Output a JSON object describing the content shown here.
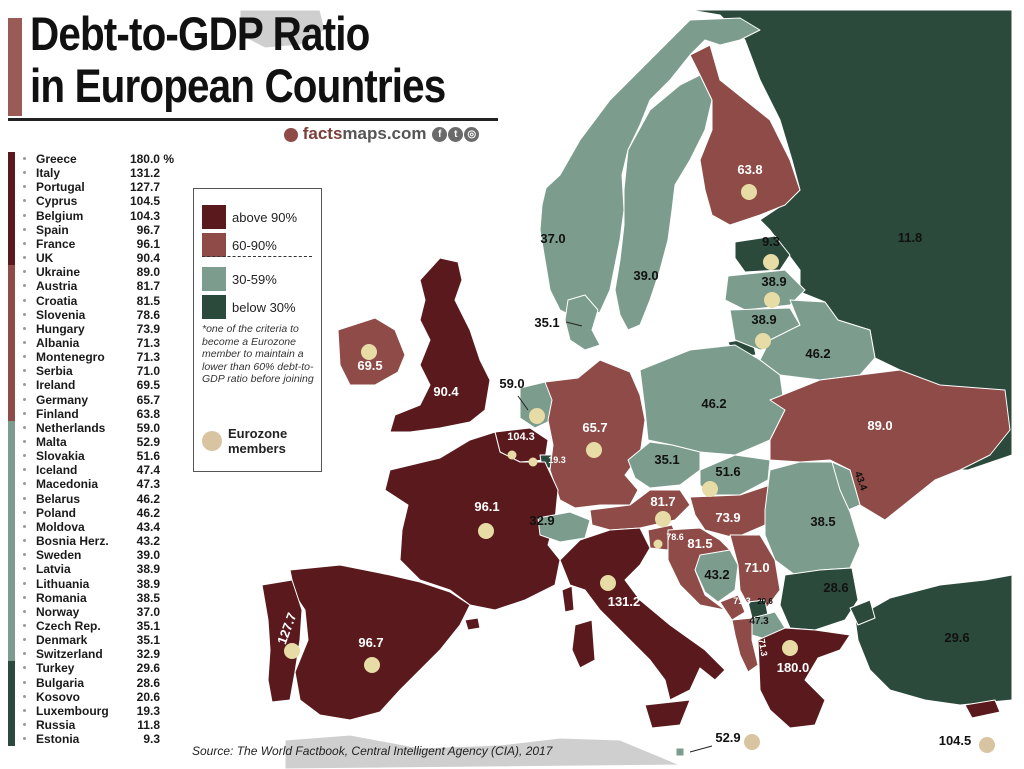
{
  "title": {
    "line1": "Debt-to-GDP Ratio",
    "line2": "in European Countries"
  },
  "brand": {
    "prefix": "facts",
    "suffix": "maps.com",
    "icons": [
      "facebook-icon",
      "twitter-icon",
      "instagram-icon"
    ]
  },
  "source": "Source: The World Factbook, Central Intelligent Agency (CIA), 2017",
  "colors": {
    "above_90": "#5a1a1d",
    "from_60_90": "#8e4b47",
    "from_30_59": "#7c9d8d",
    "below_30": "#2b4a3c",
    "eurozone_dot": "#e7dca6",
    "sea": "#ffffff",
    "non_data_land": "#cfcfcf"
  },
  "legend": {
    "items": [
      {
        "label": "above 90%",
        "color": "#5a1a1d"
      },
      {
        "label": "60-90%",
        "color": "#8e4b47"
      },
      {
        "label": "30-59%",
        "color": "#7c9d8d"
      },
      {
        "label": "below 30%",
        "color": "#2b4a3c"
      }
    ],
    "note": "*one of the criteria to become a Eurozone member to maintain a lower than 60% debt-to-GDP ratio before joining",
    "eurozone_label_1": "Eurozone",
    "eurozone_label_2": "members"
  },
  "ranking": [
    {
      "country": "Greece",
      "value": "180.0 %",
      "category": "above_90"
    },
    {
      "country": "Italy",
      "value": "131.2",
      "category": "above_90"
    },
    {
      "country": "Portugal",
      "value": "127.7",
      "category": "above_90"
    },
    {
      "country": "Cyprus",
      "value": "104.5",
      "category": "above_90"
    },
    {
      "country": "Belgium",
      "value": "104.3",
      "category": "above_90"
    },
    {
      "country": "Spain",
      "value": "96.7",
      "category": "above_90"
    },
    {
      "country": "France",
      "value": "96.1",
      "category": "above_90"
    },
    {
      "country": "UK",
      "value": "90.4",
      "category": "above_90"
    },
    {
      "country": "Ukraine",
      "value": "89.0",
      "category": "from_60_90"
    },
    {
      "country": "Austria",
      "value": "81.7",
      "category": "from_60_90"
    },
    {
      "country": "Croatia",
      "value": "81.5",
      "category": "from_60_90"
    },
    {
      "country": "Slovenia",
      "value": "78.6",
      "category": "from_60_90"
    },
    {
      "country": "Hungary",
      "value": "73.9",
      "category": "from_60_90"
    },
    {
      "country": "Albania",
      "value": "71.3",
      "category": "from_60_90"
    },
    {
      "country": "Montenegro",
      "value": "71.3",
      "category": "from_60_90"
    },
    {
      "country": "Serbia",
      "value": "71.0",
      "category": "from_60_90"
    },
    {
      "country": "Ireland",
      "value": "69.5",
      "category": "from_60_90"
    },
    {
      "country": "Germany",
      "value": "65.7",
      "category": "from_60_90"
    },
    {
      "country": "Finland",
      "value": "63.8",
      "category": "from_60_90"
    },
    {
      "country": "Netherlands",
      "value": "59.0",
      "category": "from_30_59"
    },
    {
      "country": "Malta",
      "value": "52.9",
      "category": "from_30_59"
    },
    {
      "country": "Slovakia",
      "value": "51.6",
      "category": "from_30_59"
    },
    {
      "country": "Iceland",
      "value": "47.4",
      "category": "from_30_59"
    },
    {
      "country": "Macedonia",
      "value": "47.3",
      "category": "from_30_59"
    },
    {
      "country": "Belarus",
      "value": "46.2",
      "category": "from_30_59"
    },
    {
      "country": "Poland",
      "value": "46.2",
      "category": "from_30_59"
    },
    {
      "country": "Moldova",
      "value": "43.4",
      "category": "from_30_59"
    },
    {
      "country": "Bosnia Herz.",
      "value": "43.2",
      "category": "from_30_59"
    },
    {
      "country": "Sweden",
      "value": "39.0",
      "category": "from_30_59"
    },
    {
      "country": "Latvia",
      "value": "38.9",
      "category": "from_30_59"
    },
    {
      "country": "Lithuania",
      "value": "38.9",
      "category": "from_30_59"
    },
    {
      "country": "Romania",
      "value": "38.5",
      "category": "from_30_59"
    },
    {
      "country": "Norway",
      "value": "37.0",
      "category": "from_30_59"
    },
    {
      "country": "Czech Rep.",
      "value": "35.1",
      "category": "from_30_59"
    },
    {
      "country": "Denmark",
      "value": "35.1",
      "category": "from_30_59"
    },
    {
      "country": "Switzerland",
      "value": "32.9",
      "category": "from_30_59"
    },
    {
      "country": "Turkey",
      "value": "29.6",
      "category": "below_30"
    },
    {
      "country": "Bulgaria",
      "value": "28.6",
      "category": "below_30"
    },
    {
      "country": "Kosovo",
      "value": "20.6",
      "category": "below_30"
    },
    {
      "country": "Luxembourg",
      "value": "19.3",
      "category": "below_30"
    },
    {
      "country": "Russia",
      "value": "11.8",
      "category": "below_30"
    },
    {
      "country": "Estonia",
      "value": "9.3",
      "category": "below_30"
    }
  ],
  "map_labels": [
    {
      "name": "Russia",
      "value": "11.8",
      "category": "below_30",
      "eurozone": false
    },
    {
      "name": "Finland",
      "value": "63.8",
      "category": "from_60_90",
      "eurozone": true
    },
    {
      "name": "Norway",
      "value": "37.0",
      "category": "from_30_59",
      "eurozone": false
    },
    {
      "name": "Sweden",
      "value": "39.0",
      "category": "from_30_59",
      "eurozone": false
    },
    {
      "name": "Estonia",
      "value": "9.3",
      "category": "below_30",
      "eurozone": true
    },
    {
      "name": "Latvia",
      "value": "38.9",
      "category": "from_30_59",
      "eurozone": true
    },
    {
      "name": "Lithuania",
      "value": "38.9",
      "category": "from_30_59",
      "eurozone": true
    },
    {
      "name": "Belarus",
      "value": "46.2",
      "category": "from_30_59",
      "eurozone": false
    },
    {
      "name": "Denmark",
      "value": "35.1",
      "category": "from_30_59",
      "eurozone": false
    },
    {
      "name": "Ireland",
      "value": "69.5",
      "category": "from_60_90",
      "eurozone": true
    },
    {
      "name": "UK",
      "value": "90.4",
      "category": "above_90",
      "eurozone": false
    },
    {
      "name": "Netherlands",
      "value": "59.0",
      "category": "from_30_59",
      "eurozone": true
    },
    {
      "name": "Germany",
      "value": "65.7",
      "category": "from_60_90",
      "eurozone": true
    },
    {
      "name": "Poland",
      "value": "46.2",
      "category": "from_30_59",
      "eurozone": false
    },
    {
      "name": "Ukraine",
      "value": "89.0",
      "category": "from_60_90",
      "eurozone": false
    },
    {
      "name": "Belgium",
      "value": "104.3",
      "category": "above_90",
      "eurozone": true
    },
    {
      "name": "Luxembourg",
      "value": "19.3",
      "category": "below_30",
      "eurozone": true
    },
    {
      "name": "Czech Rep.",
      "value": "35.1",
      "category": "from_30_59",
      "eurozone": false
    },
    {
      "name": "Slovakia",
      "value": "51.6",
      "category": "from_30_59",
      "eurozone": true
    },
    {
      "name": "Moldova",
      "value": "43.4",
      "category": "from_30_59",
      "eurozone": false
    },
    {
      "name": "France",
      "value": "96.1",
      "category": "above_90",
      "eurozone": true
    },
    {
      "name": "Austria",
      "value": "81.7",
      "category": "from_60_90",
      "eurozone": true
    },
    {
      "name": "Hungary",
      "value": "73.9",
      "category": "from_60_90",
      "eurozone": false
    },
    {
      "name": "Romania",
      "value": "38.5",
      "category": "from_30_59",
      "eurozone": false
    },
    {
      "name": "Switzerland",
      "value": "32.9",
      "category": "from_30_59",
      "eurozone": false
    },
    {
      "name": "Slovenia",
      "value": "78.6",
      "category": "from_60_90",
      "eurozone": true
    },
    {
      "name": "Croatia",
      "value": "81.5",
      "category": "from_60_90",
      "eurozone": false
    },
    {
      "name": "Serbia",
      "value": "71.0",
      "category": "from_60_90",
      "eurozone": false
    },
    {
      "name": "Bosnia Herz.",
      "value": "43.2",
      "category": "from_30_59",
      "eurozone": false
    },
    {
      "name": "Bulgaria",
      "value": "28.6",
      "category": "below_30",
      "eurozone": false
    },
    {
      "name": "Montenegro",
      "value": "71.3",
      "category": "from_60_90",
      "eurozone": false
    },
    {
      "name": "Kosovo",
      "value": "20.6",
      "category": "below_30",
      "eurozone": false
    },
    {
      "name": "Macedonia",
      "value": "47.3",
      "category": "from_30_59",
      "eurozone": false
    },
    {
      "name": "Albania",
      "value": "71.3",
      "category": "from_60_90",
      "eurozone": false
    },
    {
      "name": "Italy",
      "value": "131.2",
      "category": "above_90",
      "eurozone": true
    },
    {
      "name": "Portugal",
      "value": "127.7",
      "category": "above_90",
      "eurozone": true
    },
    {
      "name": "Spain",
      "value": "96.7",
      "category": "above_90",
      "eurozone": true
    },
    {
      "name": "Greece",
      "value": "180.0",
      "category": "above_90",
      "eurozone": true
    },
    {
      "name": "Turkey",
      "value": "29.6",
      "category": "below_30",
      "eurozone": false
    },
    {
      "name": "Malta",
      "value": "52.9",
      "category": "from_30_59",
      "eurozone": true
    },
    {
      "name": "Cyprus",
      "value": "104.5",
      "category": "above_90",
      "eurozone": true
    }
  ]
}
